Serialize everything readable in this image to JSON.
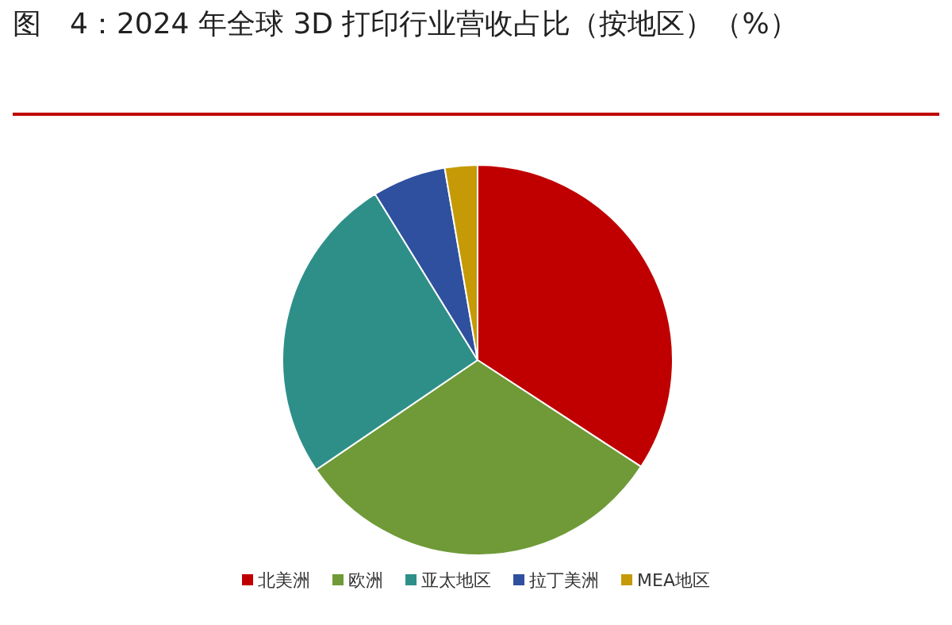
{
  "chart_data": {
    "type": "pie",
    "title": "图　4：2024 年全球 3D 打印行业营收占比（按地区）（%）",
    "categories": [
      "北美洲",
      "欧洲",
      "亚太地区",
      "拉丁美洲",
      "MEA地区"
    ],
    "values": [
      34.2,
      31.3,
      25.7,
      6.1,
      2.7
    ],
    "colors": [
      "#c00000",
      "#6f9a37",
      "#2e8f89",
      "#2f509e",
      "#c59a06"
    ],
    "legend": "bottom"
  }
}
